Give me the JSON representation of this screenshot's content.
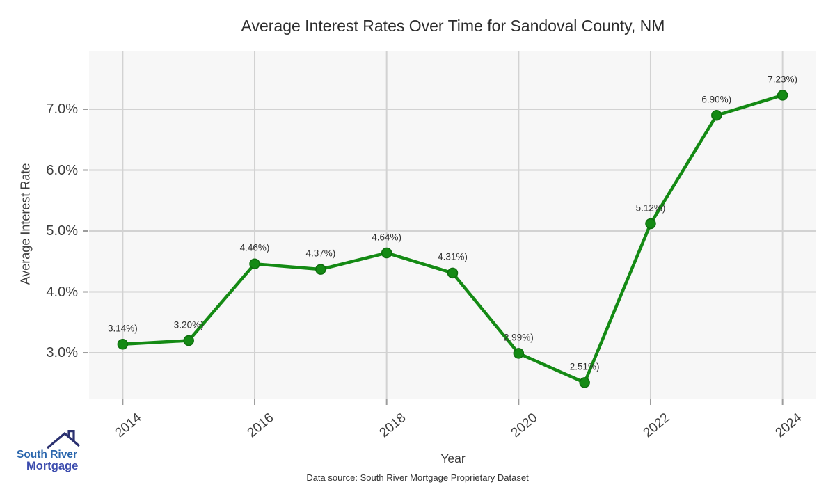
{
  "header": {
    "title": "Average Interest Rates Over Time for Sandoval County, NM"
  },
  "chart_data": {
    "type": "line",
    "x": [
      2014,
      2015,
      2016,
      2017,
      2018,
      2019,
      2020,
      2021,
      2022,
      2023,
      2024
    ],
    "values": [
      3.14,
      3.2,
      4.46,
      4.37,
      4.64,
      4.31,
      2.99,
      2.51,
      5.12,
      6.9,
      7.23
    ],
    "point_labels": [
      "3.14%)",
      "3.20%)",
      "4.46%)",
      "4.37%)",
      "4.64%)",
      "4.31%)",
      "2.99%)",
      "2.51%)",
      "5.12%)",
      "6.90%)",
      "7.23%)"
    ],
    "title": "Average Interest Rates Over Time for Sandoval County, NM",
    "xlabel": "Year",
    "ylabel": "Average Interest Rate",
    "xticks": [
      2014,
      2016,
      2018,
      2020,
      2022,
      2024
    ],
    "xtick_labels": [
      "2014",
      "2016",
      "2018",
      "2020",
      "2022",
      "2024"
    ],
    "yticks": [
      3,
      4,
      5,
      6,
      7
    ],
    "ytick_labels": [
      "3.0%",
      "4.0%",
      "5.0%",
      "6.0%",
      "7.0%"
    ],
    "xlim": [
      2013.49,
      2024.51
    ],
    "ylim": [
      2.246,
      7.96
    ],
    "grid": true,
    "legend": "none",
    "line_color": "#148a14",
    "point_color": "#148a14",
    "point_edge_color": "#0e6e0e",
    "panel_bg": "#f7f7f7",
    "grid_color": "#d2d2d2",
    "tick_color": "#9c9c9c"
  },
  "footer": {
    "source": "Data source: South River Mortgage Proprietary Dataset"
  },
  "logo": {
    "line1": "South River",
    "line2": "Mortgage",
    "roof_color": "#2b3170"
  }
}
